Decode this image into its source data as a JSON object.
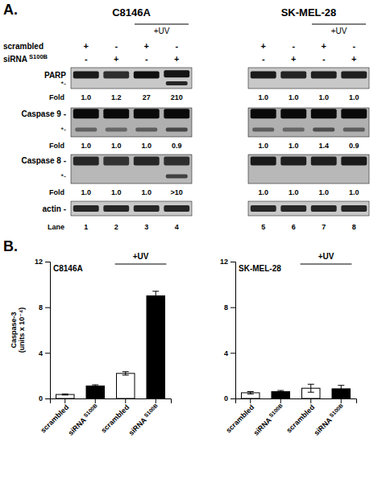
{
  "chart_data": [
    {
      "type": "blot",
      "label": "A.",
      "uv_label": "+UV",
      "condition_labels": [
        "scrambled",
        "siRNA S100B"
      ],
      "fold_label": "Fold",
      "lane_label": "Lane",
      "groups": [
        {
          "title": "C8146A",
          "signs": [
            [
              "+",
              "-",
              "+",
              "-"
            ],
            [
              "-",
              "+",
              "-",
              "+"
            ]
          ],
          "lanes": [
            "1",
            "2",
            "3",
            "4"
          ]
        },
        {
          "title": "SK-MEL-28",
          "signs": [
            [
              "+",
              "-",
              "+",
              "-"
            ],
            [
              "-",
              "+",
              "-",
              "+"
            ]
          ],
          "lanes": [
            "5",
            "6",
            "7",
            "8"
          ]
        }
      ],
      "blots": [
        {
          "name": "PARP",
          "marker_label": "*-",
          "color": "#c8c8c8",
          "folds": [
            [
              "1.0",
              "1.2",
              "27",
              "210"
            ],
            [
              "1.0",
              "1.0",
              "1.0",
              "1.0"
            ]
          ],
          "bands": [
            [
              [
                "#1a1a1a"
              ],
              [
                "#2e2e2e"
              ],
              [
                "#0f0f0f"
              ],
              [
                "#141414",
                "#262626"
              ]
            ],
            [
              [
                "#1a1a1a"
              ],
              [
                "#242424"
              ],
              [
                "#1f1f1f"
              ],
              [
                "#1f1f1f"
              ]
            ]
          ]
        },
        {
          "name": "Caspase 9 -",
          "marker_label": "*-",
          "color": "#b0b0b0",
          "folds": [
            [
              "1.0",
              "1.0",
              "1.0",
              "0.9"
            ],
            [
              "1.0",
              "1.0",
              "1.4",
              "0.9"
            ]
          ],
          "bands": [
            [
              [
                "#0a0a0a",
                "#616161"
              ],
              [
                "#0a0a0a",
                "#666666"
              ],
              [
                "#0a0a0a",
                "#5c5c5c"
              ],
              [
                "#0a0a0a",
                "#474747"
              ]
            ],
            [
              [
                "#0a0a0a",
                "#5c5c5c"
              ],
              [
                "#0a0a0a",
                "#666666"
              ],
              [
                "#0a0a0a",
                "#4d4d4d"
              ],
              [
                "#0a0a0a",
                "#5c5c5c"
              ]
            ]
          ]
        },
        {
          "name": "Caspase 8 -",
          "marker_label": "*-",
          "color": "#b8b8b8",
          "folds": [
            [
              "1.0",
              "1.0",
              "1.0",
              ">10"
            ],
            [
              "1.0",
              "1.0",
              "1.0",
              "1.0"
            ]
          ],
          "bands": [
            [
              [
                "#262626"
              ],
              [
                "#333333"
              ],
              [
                "#262626"
              ],
              [
                "#2e2e2e",
                "#404040"
              ]
            ],
            [
              [
                "#1a1a1a"
              ],
              [
                "#1f1f1f"
              ],
              [
                "#1f1f1f"
              ],
              [
                "#1a1a1a"
              ]
            ]
          ]
        },
        {
          "name": "actin -",
          "color": "#c8c8c8",
          "bands": [
            [
              [
                "#262626"
              ],
              [
                "#262626"
              ],
              [
                "#262626"
              ],
              [
                "#262626"
              ]
            ],
            [
              [
                "#262626"
              ],
              [
                "#262626"
              ],
              [
                "#262626"
              ],
              [
                "#262626"
              ]
            ]
          ]
        }
      ]
    },
    {
      "type": "bar",
      "label": "B.",
      "title": "C8146A",
      "ylabel": "Caspase-3\n(units x 10⁻⁴)",
      "annotation": "+UV",
      "categories": [
        "scrambled",
        "siRNA S100B",
        "scrambled",
        "siRNA S100B"
      ],
      "values": [
        0.35,
        1.1,
        2.2,
        9.0
      ],
      "errors": [
        0.05,
        0.1,
        0.15,
        0.4
      ],
      "colors": [
        "white",
        "black",
        "white",
        "black"
      ],
      "ylim": [
        0,
        12
      ],
      "yticks": [
        0,
        4,
        8,
        12
      ]
    },
    {
      "type": "bar",
      "title": "SK-MEL-28",
      "annotation": "+UV",
      "categories": [
        "scrambled",
        "siRNA S100B",
        "scrambled",
        "siRNA S100B"
      ],
      "values": [
        0.5,
        0.6,
        0.9,
        0.85
      ],
      "errors": [
        0.1,
        0.1,
        0.35,
        0.3
      ],
      "colors": [
        "white",
        "black",
        "white",
        "black"
      ],
      "ylim": [
        0,
        12
      ],
      "yticks": [
        0,
        4,
        8,
        12
      ]
    }
  ]
}
